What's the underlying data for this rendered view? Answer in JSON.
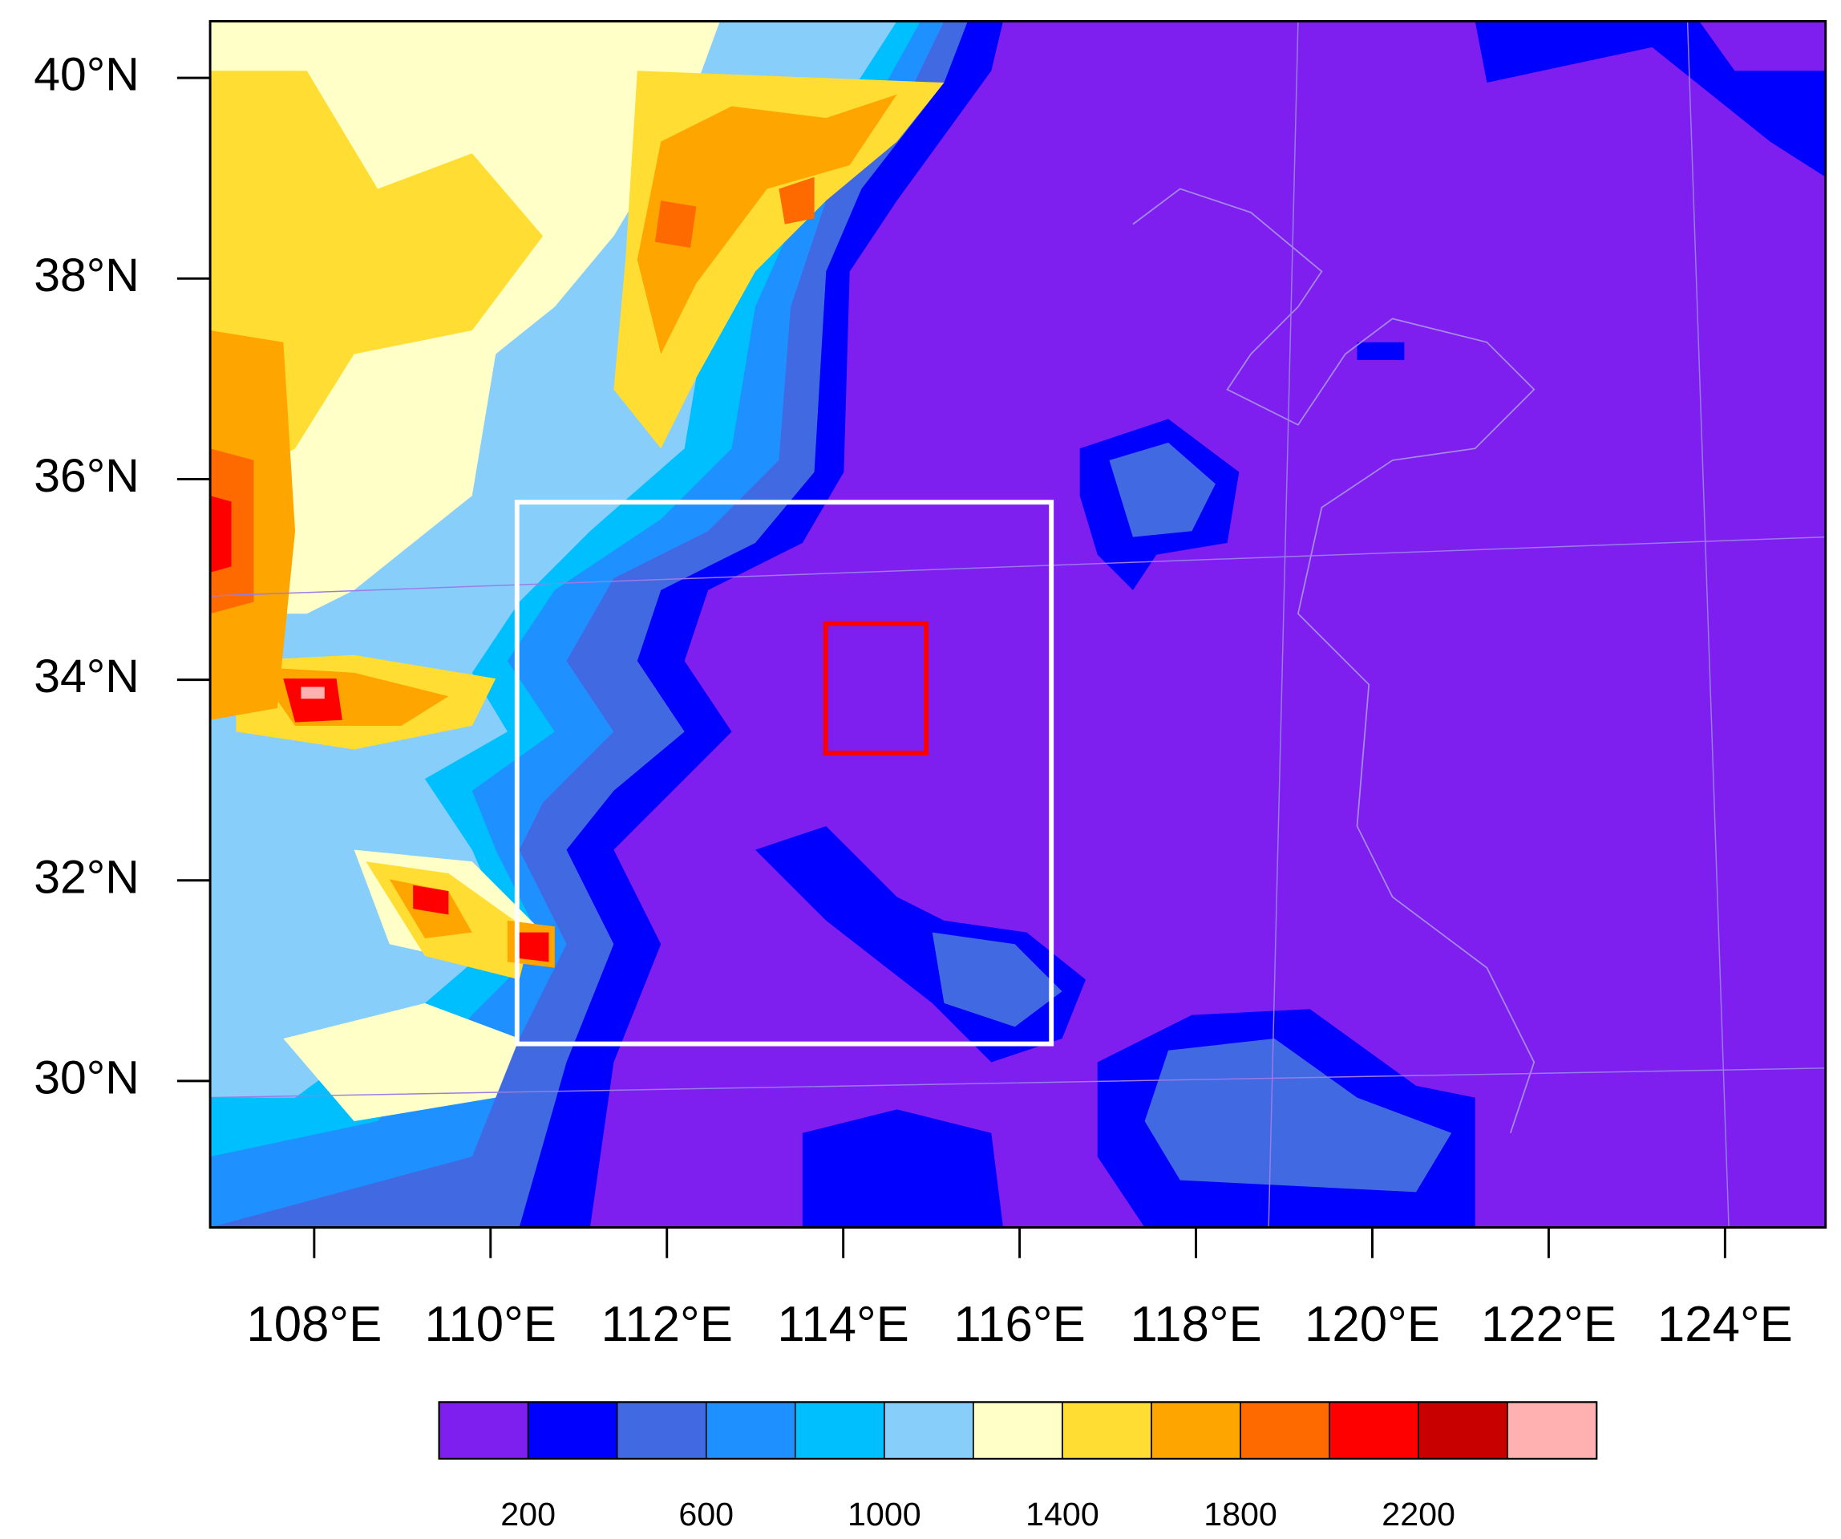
{
  "map": {
    "lonlim": [
      106.82,
      125.14
    ],
    "latlim": [
      28.54,
      40.565
    ],
    "lat_ticks": [
      {
        "value": 30,
        "label": "30°N"
      },
      {
        "value": 32,
        "label": "32°N"
      },
      {
        "value": 34,
        "label": "34°N"
      },
      {
        "value": 36,
        "label": "36°N"
      },
      {
        "value": 38,
        "label": "38°N"
      },
      {
        "value": 40,
        "label": "40°N"
      }
    ],
    "lon_ticks": [
      {
        "value": 108,
        "label": "108°E"
      },
      {
        "value": 110,
        "label": "110°E"
      },
      {
        "value": 112,
        "label": "112°E"
      },
      {
        "value": 114,
        "label": "114°E"
      },
      {
        "value": 116,
        "label": "116°E"
      },
      {
        "value": 118,
        "label": "118°E"
      },
      {
        "value": 120,
        "label": "120°E"
      },
      {
        "value": 122,
        "label": "122°E"
      },
      {
        "value": 124,
        "label": "124°E"
      }
    ],
    "boxes": [
      {
        "color": "#ffffff",
        "lon": [
          110.3,
          116.36
        ],
        "lat": [
          30.37,
          35.77
        ]
      },
      {
        "color": "#ff0000",
        "lon": [
          113.8,
          114.94
        ],
        "lat": [
          33.27,
          34.56
        ]
      }
    ],
    "colorbar": {
      "colors": [
        "#7f1fef",
        "#0000ff",
        "#4169e1",
        "#1e90ff",
        "#00bfff",
        "#87cefa",
        "#ffffc8",
        "#ffdd33",
        "#ffa500",
        "#ff6a00",
        "#ff0000",
        "#c80000",
        "#ffb0b0"
      ],
      "levels": [
        200,
        400,
        600,
        800,
        1000,
        1200,
        1400,
        1600,
        1800,
        2000,
        2200,
        2400
      ]
    }
  }
}
